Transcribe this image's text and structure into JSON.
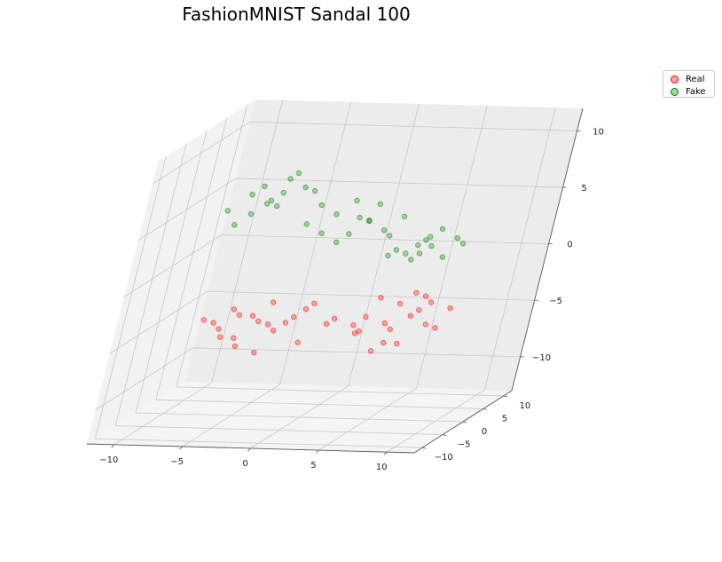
{
  "chart_data": {
    "type": "scatter",
    "title": "FashionMNIST Sandal 100",
    "projection": "3d",
    "grid": true,
    "legend_placement": "upper-right",
    "axes": {
      "x": {
        "range": [
          -12,
          12
        ],
        "ticks": [
          -10,
          -5,
          0,
          5,
          10
        ]
      },
      "y": {
        "range": [
          -12,
          12
        ],
        "ticks": [
          -10,
          -5,
          0,
          5,
          10
        ]
      },
      "z": {
        "range": [
          -13,
          12
        ],
        "ticks": [
          -10,
          -5,
          0,
          5,
          10
        ]
      }
    },
    "series": [
      {
        "name": "Real",
        "color": "#ff0000",
        "points": [
          [
            -5,
            -9,
            -4
          ],
          [
            -6,
            -8,
            -3
          ],
          [
            -4,
            -8,
            -5
          ],
          [
            -5,
            -7,
            -2
          ],
          [
            -3,
            -7,
            -3
          ],
          [
            -6,
            -6,
            -4
          ],
          [
            -4,
            -5,
            -3
          ],
          [
            -2,
            -6,
            -4
          ],
          [
            -3,
            -4,
            -2
          ],
          [
            -5,
            -5,
            -5
          ],
          [
            -1,
            -5,
            -3
          ],
          [
            -2,
            -3,
            -4
          ],
          [
            0,
            -4,
            -2
          ],
          [
            -1,
            -2,
            -3
          ],
          [
            1,
            -3,
            -4
          ],
          [
            -7,
            -7,
            -3
          ],
          [
            -4,
            -9,
            -2
          ],
          [
            -3,
            -6,
            -6
          ],
          [
            0,
            -6,
            -5
          ],
          [
            -2,
            -8,
            -3
          ],
          [
            3,
            0,
            -4
          ],
          [
            4,
            2,
            -5
          ],
          [
            5,
            1,
            -3
          ],
          [
            6,
            3,
            -4
          ],
          [
            4,
            4,
            -6
          ],
          [
            5,
            5,
            -5
          ],
          [
            7,
            2,
            -5
          ],
          [
            6,
            6,
            -4
          ],
          [
            3,
            3,
            -3
          ],
          [
            5,
            -1,
            -6
          ],
          [
            2,
            1,
            -5
          ],
          [
            7,
            5,
            -6
          ],
          [
            4,
            0,
            -7
          ],
          [
            6,
            1,
            -2
          ],
          [
            8,
            4,
            -4
          ],
          [
            1,
            -1,
            -4
          ],
          [
            3,
            -2,
            -5
          ],
          [
            2,
            3,
            -6
          ],
          [
            5,
            3,
            -7
          ],
          [
            6,
            4,
            -3
          ]
        ]
      },
      {
        "name": "Fake",
        "color": "#008000",
        "points": [
          [
            -8,
            2,
            6
          ],
          [
            -7,
            1,
            7
          ],
          [
            -6,
            0,
            6
          ],
          [
            -7,
            -1,
            5
          ],
          [
            -5,
            2,
            8
          ],
          [
            -6,
            3,
            6
          ],
          [
            -8,
            -1,
            4
          ],
          [
            -5,
            -2,
            6
          ],
          [
            -4,
            1,
            7
          ],
          [
            -9,
            0,
            5
          ],
          [
            -3,
            3,
            5
          ],
          [
            -2,
            4,
            4
          ],
          [
            -1,
            5,
            5
          ],
          [
            0,
            3,
            4
          ],
          [
            -2,
            1,
            3
          ],
          [
            -4,
            4,
            6
          ],
          [
            -3,
            0,
            4
          ],
          [
            -1,
            2,
            2
          ],
          [
            0,
            6,
            3
          ],
          [
            1,
            4,
            5
          ],
          [
            2,
            5,
            2
          ],
          [
            3,
            4,
            1
          ],
          [
            1,
            7,
            2
          ],
          [
            4,
            6,
            1
          ],
          [
            2,
            8,
            3
          ],
          [
            3,
            7,
            0
          ],
          [
            5,
            5,
            2
          ],
          [
            4,
            8,
            1
          ],
          [
            6,
            6,
            0
          ],
          [
            5,
            8,
            2
          ],
          [
            3,
            9,
            -1
          ],
          [
            6,
            9,
            1
          ],
          [
            2,
            6,
            0
          ],
          [
            7,
            7,
            1
          ],
          [
            4,
            10,
            0
          ],
          [
            -6,
            4,
            7
          ],
          [
            -7,
            3,
            5
          ],
          [
            0,
            1,
            3
          ],
          [
            1,
            2,
            4
          ],
          [
            5,
            3,
            1
          ]
        ]
      }
    ]
  }
}
